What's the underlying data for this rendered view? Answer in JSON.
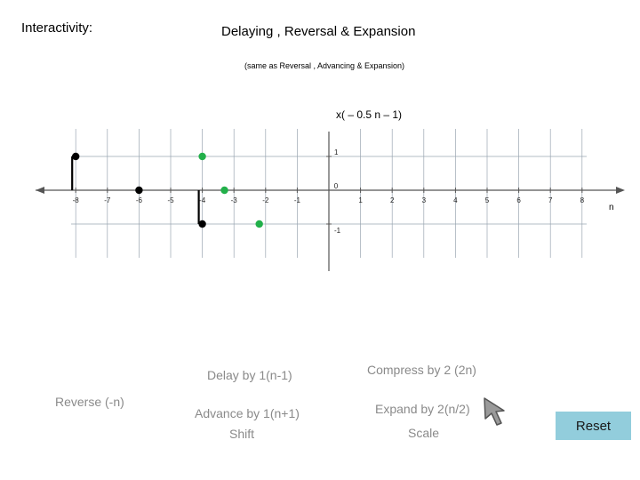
{
  "header": {
    "interactivity": "Interactivity:",
    "title": "Delaying , Reversal & Expansion",
    "subtitle": "(same as Reversal , Advancing & Expansion)"
  },
  "plot": {
    "function_label": "x( – 0.5 n – 1)",
    "axis_n_label": "n",
    "colors": {
      "black": "#000000",
      "green": "#22b04a",
      "grid": "#9aa6b2",
      "axis": "#555555"
    }
  },
  "chart_data": {
    "type": "scatter",
    "x_ticks": [
      "-8",
      "-7",
      "-6",
      "-5",
      "-4",
      "-3",
      "-2",
      "-1",
      "0",
      "1",
      "2",
      "3",
      "4",
      "5",
      "6",
      "7",
      "8"
    ],
    "y_ticks": [
      "1",
      "-1"
    ],
    "xlim": [
      -8.5,
      8.5
    ],
    "ylim": [
      -1,
      1
    ],
    "series": [
      {
        "color": "black",
        "stem": true,
        "points": [
          [
            -8,
            1
          ],
          [
            -6,
            0
          ],
          [
            -4,
            -1
          ]
        ]
      },
      {
        "color": "green",
        "stem": false,
        "points": [
          [
            -4,
            1
          ],
          [
            -3.3,
            0
          ],
          [
            -2.2,
            -1
          ]
        ]
      }
    ]
  },
  "controls": {
    "delay": "Delay by 1(n-1)",
    "compress": "Compress by 2 (2n)",
    "reverse": "Reverse (-n)",
    "advance": "Advance by 1(n+1)",
    "shift": "Shift",
    "expand": "Expand by 2(n/2)",
    "scale": "Scale",
    "reset": "Reset",
    "cursor_icon": "arrow-cursor-icon"
  }
}
